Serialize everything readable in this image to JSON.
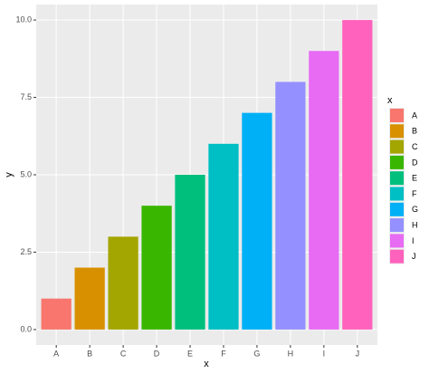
{
  "chart_data": {
    "type": "bar",
    "x_label": "x",
    "y_label": "y",
    "legend_title": "x",
    "categories": [
      "A",
      "B",
      "C",
      "D",
      "E",
      "F",
      "G",
      "H",
      "I",
      "J"
    ],
    "values": [
      1,
      2,
      3,
      4,
      5,
      6,
      7,
      8,
      9,
      10
    ],
    "colors": [
      "#F8766D",
      "#D89000",
      "#A3A500",
      "#39B600",
      "#00BF7D",
      "#00BFC4",
      "#00B0F6",
      "#9590FF",
      "#E76BF3",
      "#FF62BC"
    ],
    "ylim": [
      -0.5,
      10.5
    ],
    "yticks": [
      {
        "value": 0,
        "label": "0.0"
      },
      2.5,
      {
        "value": 5,
        "label": "5.0"
      },
      7.5,
      {
        "value": 10,
        "label": "10.0"
      }
    ],
    "grid": true,
    "legend": "right"
  }
}
